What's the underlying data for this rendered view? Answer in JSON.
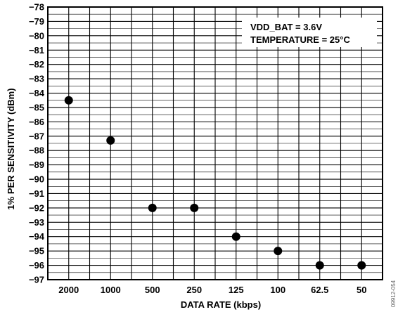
{
  "chart_data": {
    "type": "scatter",
    "categories": [
      "2000",
      "1000",
      "500",
      "250",
      "125",
      "100",
      "62.5",
      "50"
    ],
    "series": [
      {
        "values": [
          -84.5,
          -87.3,
          -92.0,
          -92.0,
          -94.0,
          -95.0,
          -96.0,
          -96.0
        ]
      }
    ],
    "xlabel": "DATA RATE (kbps)",
    "ylabel": "1% PER SENSITIVITY (dBm)",
    "ylim": [
      -97,
      -78
    ],
    "yticks": [
      "-78",
      "-79",
      "-80",
      "-81",
      "-82",
      "-83",
      "-84",
      "-85",
      "-86",
      "-87",
      "-88",
      "-89",
      "-90",
      "-91",
      "-92",
      "-93",
      "-94",
      "-95",
      "-96",
      "-97"
    ],
    "annotations": [
      "VDD_BAT = 3.6V",
      "TEMPERATURE = 25°C"
    ],
    "figure_id": "09912-054",
    "grid": true,
    "marker_color": "#000000",
    "grid_color": "#000000"
  }
}
